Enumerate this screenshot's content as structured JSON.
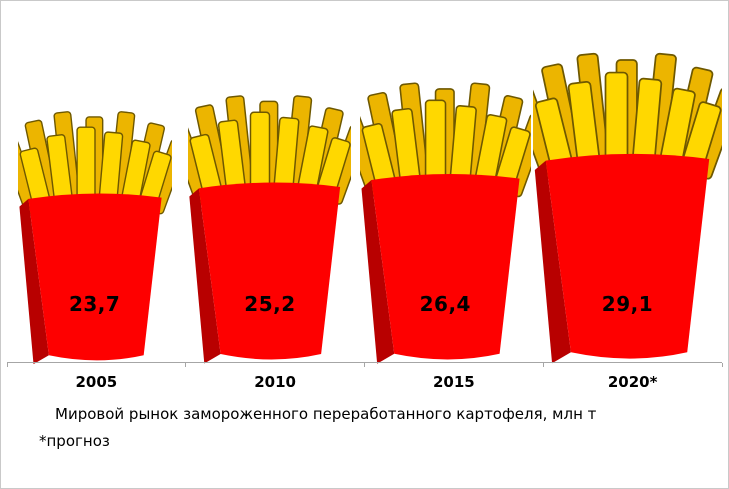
{
  "chart_data": {
    "type": "bar",
    "pictogram": "french-fries-carton",
    "categories": [
      "2005",
      "2010",
      "2015",
      "2020*"
    ],
    "values": [
      23.7,
      25.2,
      26.4,
      29.1
    ],
    "value_labels": [
      "23,7",
      "25,2",
      "26,4",
      "29,1"
    ],
    "title": "Мировой рынок замороженного переработанного картофеля, млн т",
    "footnote": "*прогноз",
    "unit": "млн т",
    "ylim": [
      0,
      30
    ],
    "legend": "none",
    "grid": "off",
    "colors": {
      "carton_front": "#fe0000",
      "carton_side": "#b80000",
      "fries_bright": "#ffd800",
      "fries_shadow": "#ecb500",
      "fries_outline": "#6e5800",
      "axis": "#a6a6a6",
      "text": "#000000"
    }
  }
}
